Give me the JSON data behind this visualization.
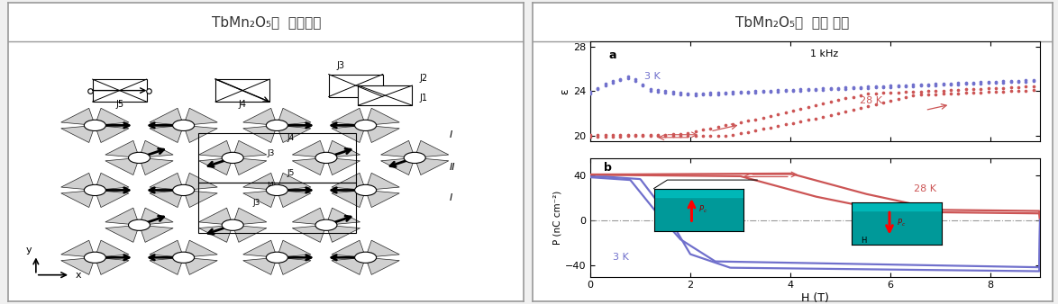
{
  "title_left": "TbMn₂O₅의  스핀구조",
  "title_right": "TbMn₂O₅의  분극 변화",
  "title_fontsize": 11,
  "border_color": "#aaaaaa",
  "bg_color": "#f0f0f0",
  "panel_bg": "#ffffff",
  "subplot_a_label": "a",
  "subplot_b_label": "b",
  "freq_label": "1 kHz",
  "label_3K": "3 K",
  "label_28K": "28 K",
  "xlabel": "H (T)",
  "ylabel_a": "ε",
  "ylabel_b": "P (nC cm⁻²)",
  "xlim": [
    0,
    9
  ],
  "ylim_a": [
    19.5,
    28.5
  ],
  "ylim_b": [
    -50,
    55
  ],
  "yticks_a": [
    20,
    24,
    28
  ],
  "yticks_b": [
    -40,
    0,
    40
  ],
  "xticks": [
    0,
    2,
    4,
    6,
    8
  ],
  "color_3K": "#7070cc",
  "color_28K": "#cc5555",
  "color_dashed": "#888888",
  "teal_color": "#009999"
}
